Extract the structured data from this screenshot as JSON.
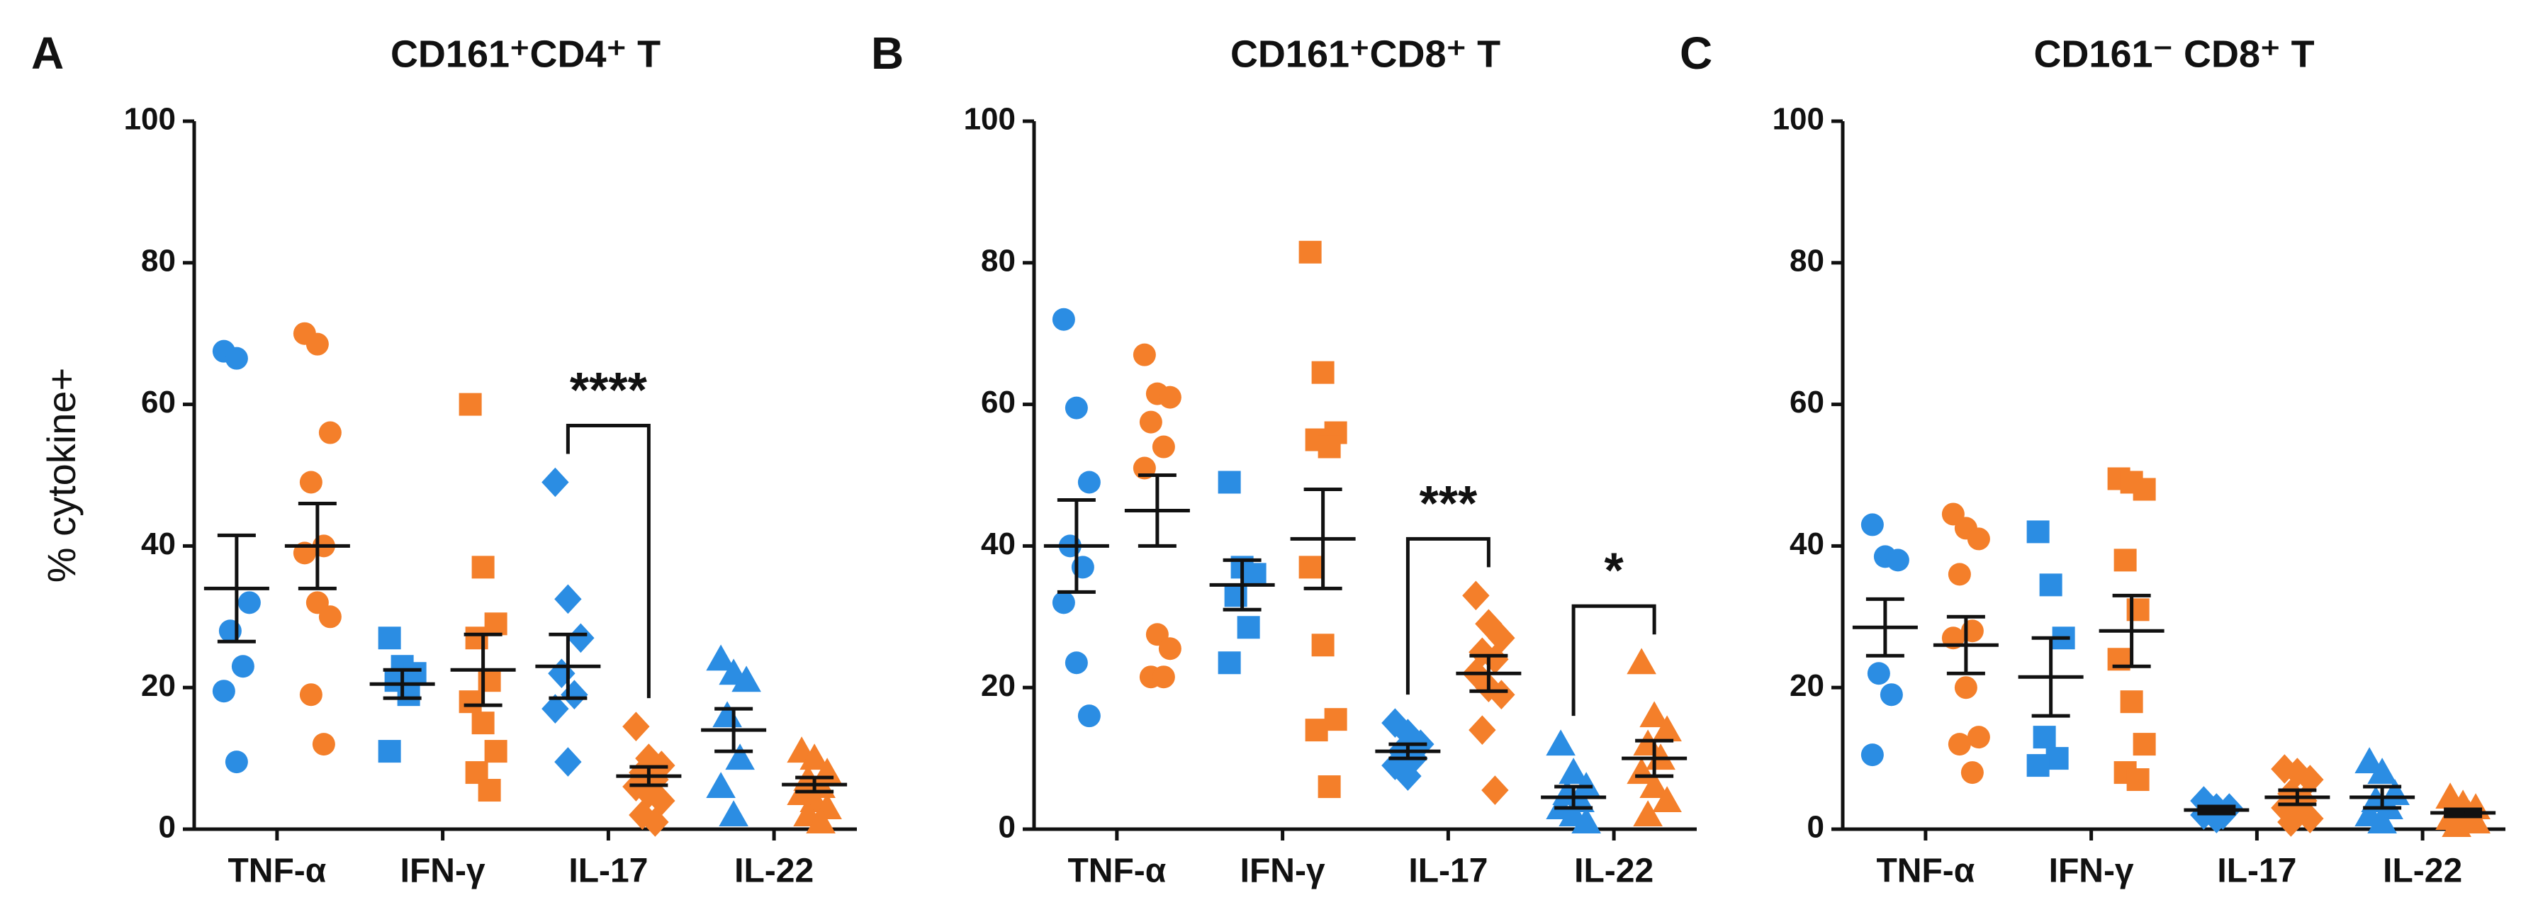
{
  "chart_data": [
    {
      "type": "dot",
      "panel": "A",
      "title": "CD161⁺CD4⁺ T",
      "ylabel": "% cytokine+",
      "categories": [
        "TNF-α",
        "IFN-γ",
        "IL-17",
        "IL-22"
      ],
      "markers": [
        "circle",
        "square",
        "diamond",
        "triangle"
      ],
      "ylim": [
        0,
        100
      ],
      "yticks": [
        0,
        20,
        40,
        60,
        80,
        100
      ],
      "series": [
        {
          "color": "#2b8de3",
          "values": [
            [
              67.5,
              66.5,
              32,
              28,
              23,
              19.5,
              9.5
            ],
            [
              27,
              23,
              22,
              21,
              19,
              11
            ],
            [
              49,
              32.5,
              27,
              22,
              19,
              17,
              9.5
            ],
            [
              24,
              22,
              21,
              16,
              10,
              6,
              2
            ]
          ],
          "means": [
            34,
            20.5,
            23,
            14
          ],
          "sems": [
            7.5,
            2,
            4.5,
            3
          ]
        },
        {
          "color": "#f47f2a",
          "values": [
            [
              70,
              68.5,
              56,
              49,
              40,
              39,
              32,
              30,
              19,
              12
            ],
            [
              60,
              37,
              29,
              27,
              21,
              18,
              15,
              11,
              8,
              5.5
            ],
            [
              14.5,
              10,
              9,
              8,
              7,
              6,
              5,
              4,
              2,
              1
            ],
            [
              11,
              10,
              8,
              7,
              6,
              5,
              4,
              3,
              2,
              1
            ]
          ],
          "means": [
            40,
            22.5,
            7.5,
            6.3
          ],
          "sems": [
            6,
            5,
            1.3,
            1
          ]
        }
      ],
      "annotations": [
        {
          "text": "****",
          "category": "IL-17"
        }
      ]
    },
    {
      "type": "dot",
      "panel": "B",
      "title": "CD161⁺CD8⁺ T",
      "categories": [
        "TNF-α",
        "IFN-γ",
        "IL-17",
        "IL-22"
      ],
      "markers": [
        "circle",
        "square",
        "diamond",
        "triangle"
      ],
      "ylim": [
        0,
        100
      ],
      "yticks": [
        0,
        20,
        40,
        60,
        80,
        100
      ],
      "series": [
        {
          "color": "#2b8de3",
          "values": [
            [
              72,
              59.5,
              49,
              40,
              37,
              32,
              23.5,
              16
            ],
            [
              49,
              37,
              36,
              33,
              28.5,
              23.5
            ],
            [
              15,
              13.5,
              12,
              11,
              10,
              9,
              7.5
            ],
            [
              12,
              8,
              6,
              5,
              4,
              3,
              2,
              1
            ]
          ],
          "means": [
            40,
            34.5,
            11,
            4.5
          ],
          "sems": [
            6.5,
            3.5,
            1,
            1.5
          ]
        },
        {
          "color": "#f47f2a",
          "values": [
            [
              67,
              61.5,
              61,
              57.5,
              54,
              51,
              27.5,
              25.5,
              21.5,
              21.5
            ],
            [
              81.5,
              64.5,
              56,
              55,
              54,
              37,
              26,
              15.5,
              14,
              6
            ],
            [
              33,
              29,
              27,
              25,
              24,
              22,
              20,
              19,
              14,
              5.5
            ],
            [
              23.5,
              16,
              14,
              12,
              10,
              8,
              6,
              4,
              2
            ]
          ],
          "means": [
            45,
            41,
            22,
            10
          ],
          "sems": [
            5,
            7,
            2.5,
            2.5
          ]
        }
      ],
      "annotations": [
        {
          "text": "***",
          "category": "IL-17"
        },
        {
          "text": "*",
          "category": "IL-22"
        }
      ]
    },
    {
      "type": "dot",
      "panel": "C",
      "title": "CD161⁻ CD8⁺ T",
      "categories": [
        "TNF-α",
        "IFN-γ",
        "IL-17",
        "IL-22"
      ],
      "markers": [
        "circle",
        "square",
        "diamond",
        "triangle"
      ],
      "ylim": [
        0,
        100
      ],
      "yticks": [
        0,
        20,
        40,
        60,
        80,
        100
      ],
      "series": [
        {
          "color": "#2b8de3",
          "values": [
            [
              43,
              38.5,
              38,
              22,
              19,
              10.5
            ],
            [
              42,
              34.5,
              27,
              13,
              10,
              9
            ],
            [
              4,
              3,
              3,
              2.5,
              2,
              2,
              1.5
            ],
            [
              9.5,
              8,
              5,
              4,
              3,
              2,
              1
            ]
          ],
          "means": [
            28.5,
            21.5,
            2.7,
            4.5
          ],
          "sems": [
            4,
            5.5,
            0.5,
            1.5
          ]
        },
        {
          "color": "#f47f2a",
          "values": [
            [
              44.5,
              42.5,
              41,
              36,
              28,
              27,
              20,
              13,
              12,
              8
            ],
            [
              49.5,
              49,
              48,
              38,
              31,
              24,
              18,
              12,
              8,
              7
            ],
            [
              8.5,
              8,
              7,
              5,
              4,
              3,
              2,
              1.5,
              1
            ],
            [
              4.5,
              3.5,
              3,
              2.5,
              2,
              1.5,
              1,
              1,
              0.5
            ]
          ],
          "means": [
            26,
            28,
            4.5,
            2.3
          ],
          "sems": [
            4,
            5,
            1,
            0.5
          ]
        }
      ],
      "annotations": []
    }
  ]
}
